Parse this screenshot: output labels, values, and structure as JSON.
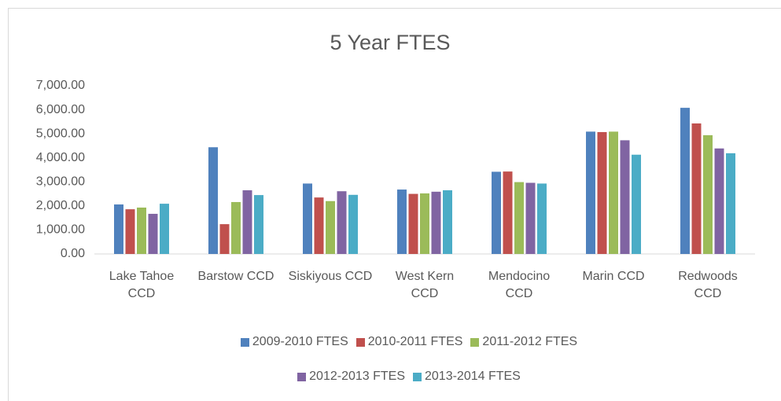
{
  "chart_data": {
    "type": "bar",
    "title": "5 Year FTES",
    "categories": [
      "Lake Tahoe CCD",
      "Barstow CCD",
      "Siskiyous CCD",
      "West Kern CCD",
      "Mendocino CCD",
      "Marin CCD",
      "Redwoods CCD"
    ],
    "series": [
      {
        "name": "2009-2010 FTES",
        "color": "#4f81bd",
        "values": [
          2060,
          4440,
          2930,
          2680,
          3420,
          5090,
          6080
        ]
      },
      {
        "name": "2010-2011 FTES",
        "color": "#c0504d",
        "values": [
          1860,
          1240,
          2350,
          2500,
          3430,
          5070,
          5430
        ]
      },
      {
        "name": "2011-2012 FTES",
        "color": "#9bbb59",
        "values": [
          1930,
          2160,
          2200,
          2520,
          2990,
          5090,
          4940
        ]
      },
      {
        "name": "2012-2013 FTES",
        "color": "#8064a2",
        "values": [
          1670,
          2650,
          2610,
          2590,
          2960,
          4730,
          4390
        ]
      },
      {
        "name": "2013-2014 FTES",
        "color": "#4bacc6",
        "values": [
          2090,
          2450,
          2460,
          2650,
          2930,
          4130,
          4190
        ]
      }
    ],
    "ylim": [
      0,
      7000
    ],
    "yticks": [
      {
        "value": 0,
        "label": "0.00"
      },
      {
        "value": 1000,
        "label": "1,000.00"
      },
      {
        "value": 2000,
        "label": "2,000.00"
      },
      {
        "value": 3000,
        "label": "3,000.00"
      },
      {
        "value": 4000,
        "label": "4,000.00"
      },
      {
        "value": 5000,
        "label": "5,000.00"
      },
      {
        "value": 6000,
        "label": "6,000.00"
      },
      {
        "value": 7000,
        "label": "7,000.00"
      }
    ],
    "legend": "bottom"
  }
}
